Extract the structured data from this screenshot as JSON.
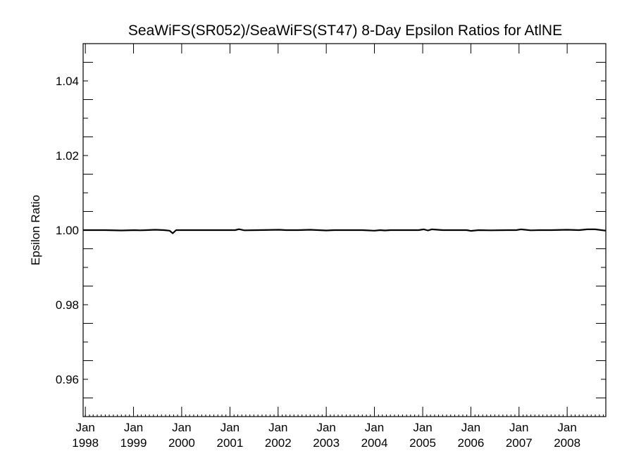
{
  "chart_data": {
    "type": "line",
    "title": "SeaWiFS(SR052)/SeaWiFS(ST47) 8-Day Epsilon Ratios for AtlNE",
    "xlabel": "",
    "ylabel": "Epsilon Ratio",
    "xlim": [
      "1997-12-15",
      "2008-10-20"
    ],
    "ylim": [
      0.95,
      1.05
    ],
    "yticks": [
      0.96,
      0.98,
      1.0,
      1.02,
      1.04
    ],
    "ytick_labels": [
      "0.96",
      "0.98",
      "1.00",
      "1.02",
      "1.04"
    ],
    "xticks": [
      {
        "date": "1998-01-01",
        "month": "Jan",
        "year": "1998"
      },
      {
        "date": "1999-01-01",
        "month": "Jan",
        "year": "1999"
      },
      {
        "date": "2000-01-01",
        "month": "Jan",
        "year": "2000"
      },
      {
        "date": "2001-01-01",
        "month": "Jan",
        "year": "2001"
      },
      {
        "date": "2002-01-01",
        "month": "Jan",
        "year": "2002"
      },
      {
        "date": "2003-01-01",
        "month": "Jan",
        "year": "2003"
      },
      {
        "date": "2004-01-01",
        "month": "Jan",
        "year": "2004"
      },
      {
        "date": "2005-01-01",
        "month": "Jan",
        "year": "2005"
      },
      {
        "date": "2006-01-01",
        "month": "Jan",
        "year": "2006"
      },
      {
        "date": "2007-01-01",
        "month": "Jan",
        "year": "2007"
      },
      {
        "date": "2008-01-01",
        "month": "Jan",
        "year": "2008"
      }
    ],
    "grid": false,
    "legend": "none",
    "line_color": "#000000",
    "series": [
      {
        "x": [
          "1997-12-15",
          "1998-06-01",
          "1998-10-01",
          "1999-01-15",
          "1999-02-20",
          "1999-04-10",
          "1999-06-15",
          "1999-08-20",
          "1999-10-01",
          "1999-10-25",
          "1999-11-20",
          "2000-01-10",
          "2000-06-01",
          "2000-12-01",
          "2001-02-10",
          "2001-03-10",
          "2001-04-20",
          "2001-08-01",
          "2002-01-10",
          "2002-03-01",
          "2002-06-01",
          "2002-09-01",
          "2003-01-01",
          "2003-03-01",
          "2003-06-01",
          "2003-10-01",
          "2004-01-01",
          "2004-02-15",
          "2004-03-20",
          "2004-05-01",
          "2004-08-01",
          "2004-12-01",
          "2005-01-10",
          "2005-02-10",
          "2005-03-10",
          "2005-06-01",
          "2005-10-01",
          "2005-12-01",
          "2006-01-01",
          "2006-03-01",
          "2006-06-01",
          "2006-10-01",
          "2006-12-10",
          "2007-01-15",
          "2007-04-01",
          "2007-06-01",
          "2007-09-01",
          "2008-01-01",
          "2008-04-01",
          "2008-06-01",
          "2008-08-01",
          "2008-10-20"
        ],
        "y": [
          1.0,
          1.0,
          0.9999,
          1.0,
          0.99995,
          1.0,
          1.0001,
          1.0,
          0.99985,
          0.99915,
          1.0,
          1.0,
          1.0,
          1.0,
          1.0,
          1.00025,
          0.99995,
          1.0,
          1.0001,
          1.0,
          1.0,
          1.0001,
          0.9999,
          1.0,
          1.0,
          1.0,
          0.99985,
          1.0,
          0.9999,
          1.0,
          1.0,
          1.0,
          1.0002,
          0.9999,
          1.0002,
          1.0,
          1.0,
          1.0,
          0.9998,
          1.0,
          0.99995,
          1.0,
          1.0,
          1.0002,
          0.99995,
          1.0,
          1.0,
          1.0001,
          1.0,
          1.0002,
          1.0002,
          0.99985
        ]
      }
    ]
  }
}
